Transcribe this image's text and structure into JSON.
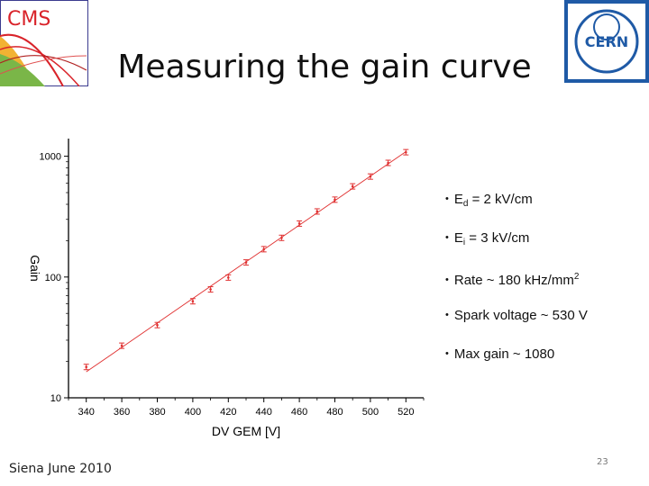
{
  "slide": {
    "title": "Measuring the gain curve",
    "cms_logo_text": "CMS",
    "cern_logo_text": "CERN",
    "bullets": [
      {
        "label": "E",
        "sub": "d",
        "sup": "",
        "text": " = 2 kV/cm"
      },
      {
        "label": "E",
        "sub": "i",
        "sup": "",
        "text": " = 3 kV/cm"
      },
      {
        "label": "Rate ~ 180 kHz/mm",
        "sub": "",
        "sup": "2",
        "text": ""
      },
      {
        "label": "Spark voltage ~ 530 V",
        "sub": "",
        "sup": "",
        "text": ""
      },
      {
        "label": "Max gain ~ 1080",
        "sub": "",
        "sup": "",
        "text": ""
      }
    ],
    "footer": "Siena June 2010",
    "page_number": "23"
  },
  "colors": {
    "data_points": "#e03030",
    "fit_line": "#e03030",
    "axis": "#000000",
    "cms_red": "#d9232a",
    "cern_blue": "#1f5aa6"
  },
  "chart_data": {
    "type": "scatter",
    "xlabel": "DV GEM [V]",
    "ylabel": "Gain",
    "xlim": [
      330,
      530
    ],
    "ylim": [
      10,
      1400
    ],
    "yscale": "log",
    "xticks": [
      340,
      360,
      380,
      400,
      420,
      440,
      460,
      480,
      500,
      520
    ],
    "yticks": [
      10,
      100,
      1000
    ],
    "grid": false,
    "fit_line": true,
    "series": [
      {
        "x": [
          340,
          360,
          380,
          400,
          410,
          420,
          430,
          440,
          450,
          460,
          470,
          480,
          490,
          500,
          510,
          520
        ],
        "y": [
          18,
          27,
          40,
          63,
          79,
          99,
          132,
          170,
          211,
          277,
          349,
          437,
          563,
          679,
          881,
          1080
        ]
      }
    ]
  }
}
